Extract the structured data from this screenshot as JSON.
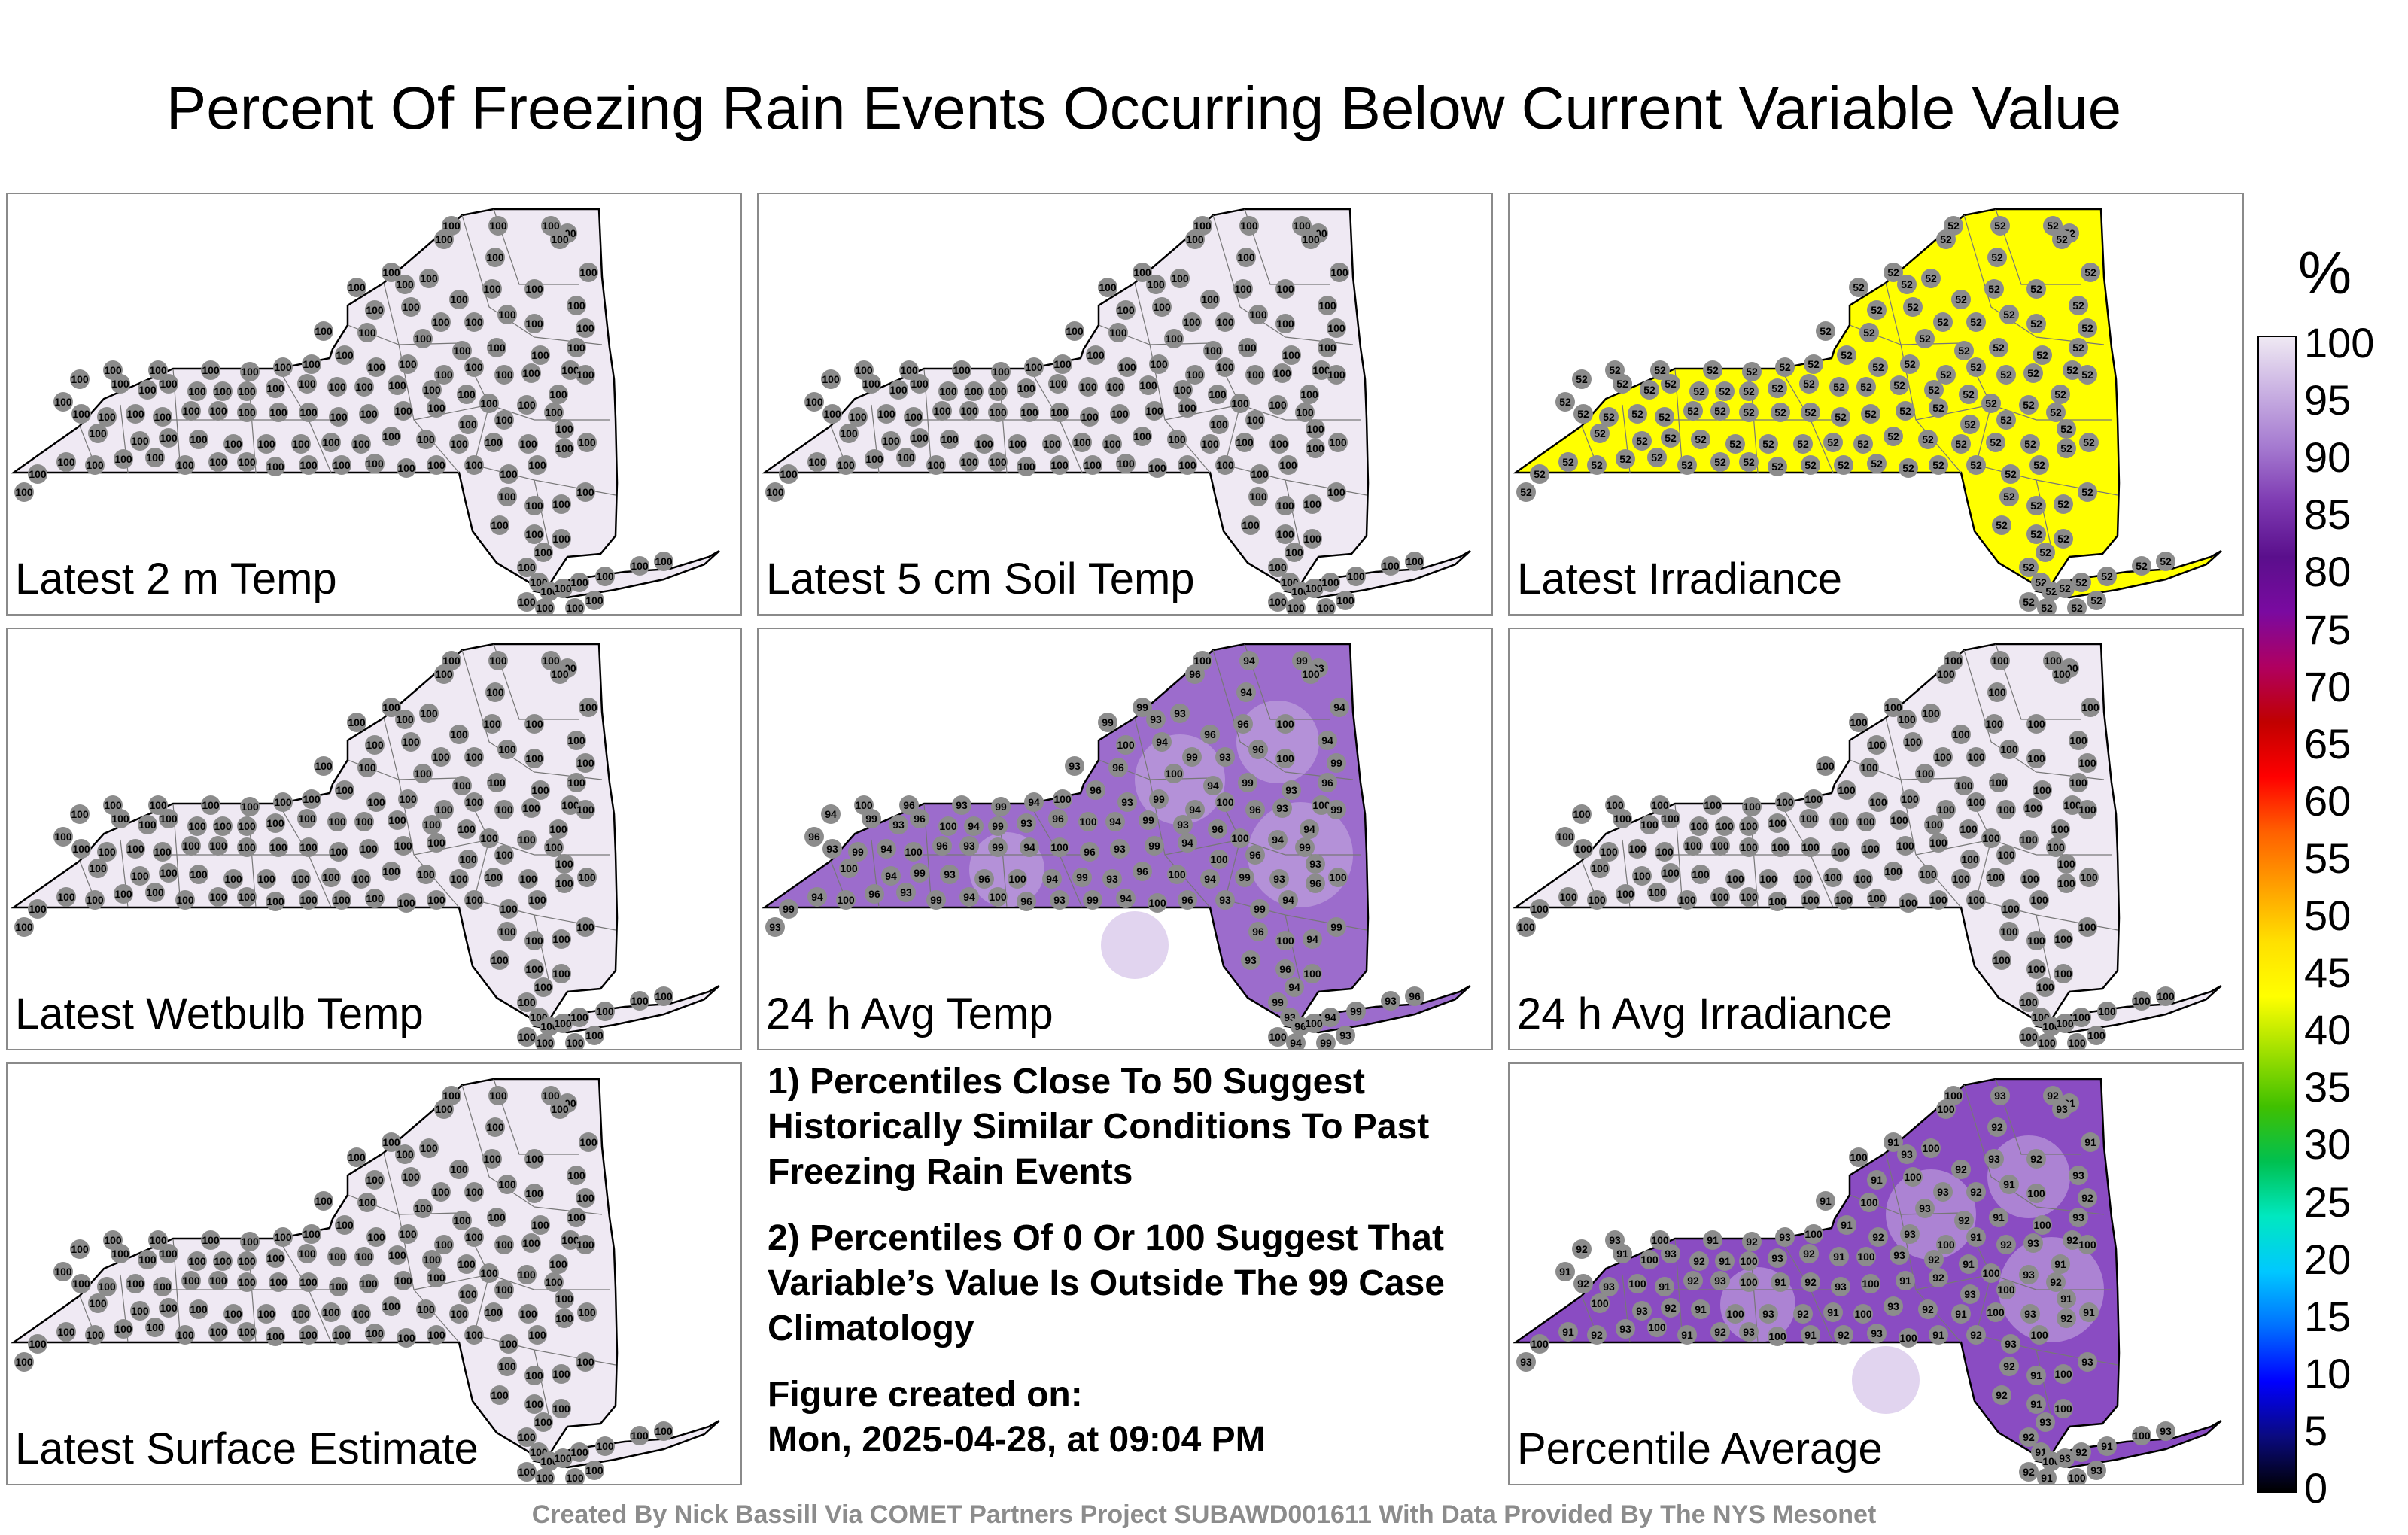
{
  "title": "Percent Of Freezing Rain Events Occurring Below Current Variable Value",
  "panels": [
    {
      "label": "Latest 2 m Temp",
      "fill": "#efe9f3",
      "value_mode": "uniform",
      "station_value": 100
    },
    {
      "label": "Latest 5 cm Soil Temp",
      "fill": "#efe9f3",
      "value_mode": "uniform",
      "station_value": 100
    },
    {
      "label": "Latest Irradiance",
      "fill": "#ffff00",
      "value_mode": "uniform",
      "station_value": 52
    },
    {
      "label": "Latest Wetbulb Temp",
      "fill": "#efe9f3",
      "value_mode": "uniform",
      "station_value": 100
    },
    {
      "label": "24 h Avg Temp",
      "fill": "#9c6ccc",
      "value_mode": "mixed",
      "station_values": [
        93,
        94,
        96,
        99,
        100
      ],
      "station_value": 96
    },
    {
      "label": "24 h Avg Irradiance",
      "fill": "#efe9f3",
      "value_mode": "uniform",
      "station_value": 100
    },
    {
      "label": "Latest Surface Estimate",
      "fill": "#efe9f3",
      "value_mode": "uniform",
      "station_value": 100
    },
    {
      "label": "Percentile Average",
      "fill": "#8a4cc2",
      "value_mode": "mixed",
      "station_values": [
        91,
        92,
        93,
        100
      ],
      "station_value": 93
    }
  ],
  "notes": {
    "line1": "1) Percentiles Close To 50 Suggest Historically Similar Conditions To Past Freezing Rain Events",
    "line2": "2) Percentiles Of 0 Or 100 Suggest That Variable’s Value Is Outside The 99 Case Climatology",
    "created_label": "Figure created on:",
    "created_value": "Mon, 2025-04-28, at 09:04 PM"
  },
  "colorbar": {
    "unit": "%",
    "ticks": [
      "100",
      "95",
      "90",
      "85",
      "80",
      "75",
      "70",
      "65",
      "60",
      "55",
      "50",
      "45",
      "40",
      "35",
      "30",
      "25",
      "20",
      "15",
      "10",
      "5",
      "0"
    ],
    "colors": [
      "#000000",
      "#0a0a80",
      "#0000ff",
      "#0070ff",
      "#00c8ff",
      "#00e8c0",
      "#00c050",
      "#40c000",
      "#a0e000",
      "#ffff00",
      "#ffe000",
      "#ffa000",
      "#ff6000",
      "#ff0000",
      "#c00000",
      "#b00060",
      "#7a0aa0",
      "#5a0f8c",
      "#7e3ab2",
      "#a57ad0",
      "#c9b0e2",
      "#efe9f3"
    ]
  },
  "credit": "Created By Nick Bassill Via COMET Partners Project SUBAWD001611 With Data Provided By The NYS Mesonet"
}
